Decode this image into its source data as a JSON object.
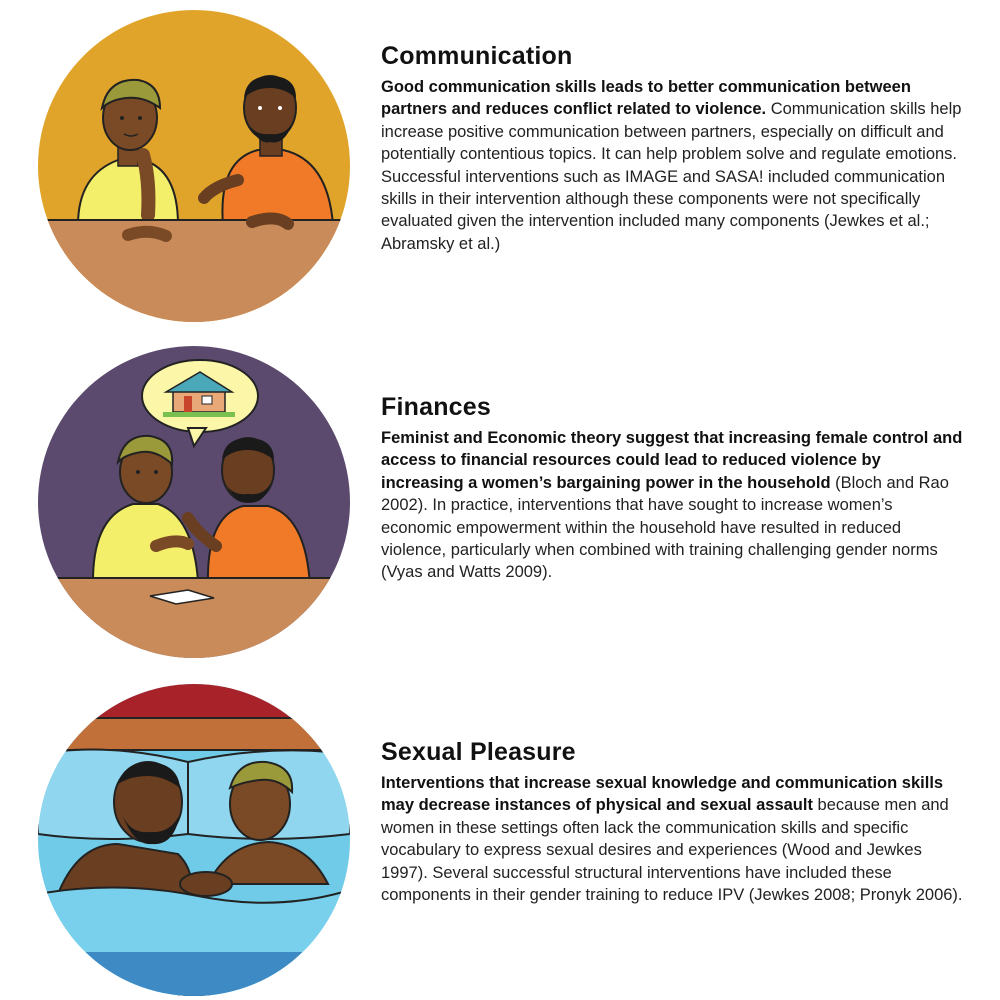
{
  "sections": [
    {
      "title": "Communication",
      "lead": "Good communication skills leads to better communication between partners and reduces conflict related to violence.",
      "body": " Communication skills help increase positive communication between partners, especially on difficult and potentially contentious topics. It can help problem solve and regulate emotions. Successful interventions such as IMAGE and SASA! included communication skills in their intervention although these components were not specifically evaluated given the intervention included many components (Jewkes et al.; Abramsky et al.)",
      "illustration": "couple-talking-at-table",
      "bg_color": "#E0A42B"
    },
    {
      "title": "Finances",
      "lead": "Feminist and Economic theory suggest that increasing female control and access to financial resources could lead to reduced violence by increasing a women’s bargaining power in the household",
      "body": " (Bloch and Rao 2002). In practice, interventions that have sought to increase women’s economic empowerment within the household have resulted in reduced violence, particularly when combined with training challenging gender norms (Vyas and Watts 2009).",
      "illustration": "couple-dreaming-of-house",
      "bg_color": "#5C4A6E"
    },
    {
      "title": "Sexual Pleasure",
      "lead": "Interventions that increase sexual knowledge and communication skills may decrease instances of physical and sexual assault",
      "body": " because men and women in these settings often lack the communication skills and specific vocabulary to express sexual desires and experiences (Wood and Jewkes 1997). Several successful structural interventions have included these components in their gender training to reduce IPV (Jewkes 2008; Pronyk 2006).",
      "illustration": "couple-in-bed",
      "bg_color": "#6FCBE8"
    }
  ]
}
